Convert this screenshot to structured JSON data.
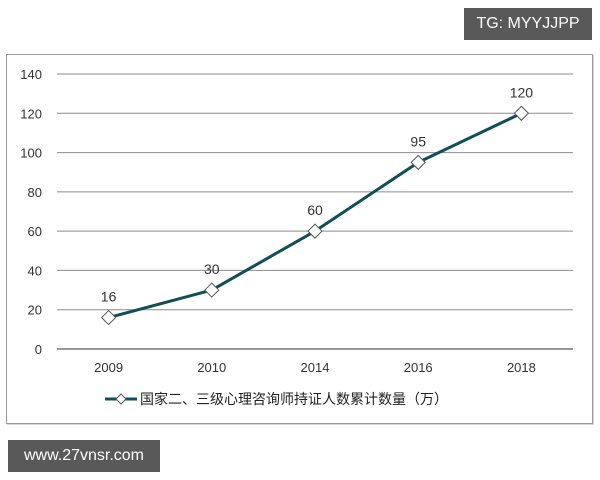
{
  "watermarks": {
    "top_right": "TG: MYYJJPP",
    "bottom_left": "www.27vnsr.com"
  },
  "colors": {
    "line": "#0f4f57",
    "grid": "#8c8c8c",
    "badge_bg": "#595959"
  },
  "chart_data": {
    "type": "line",
    "title": "",
    "xlabel": "",
    "ylabel": "",
    "categories": [
      "2009",
      "2010",
      "2014",
      "2016",
      "2018"
    ],
    "series": [
      {
        "name": "国家二、三级心理咨询师持证人数累计数量（万）",
        "values": [
          16,
          30,
          60,
          95,
          120
        ],
        "marker": "hollow-diamond",
        "data_labels": [
          "16",
          "30",
          "60",
          "95",
          "120"
        ]
      }
    ],
    "ylim": [
      0,
      140
    ],
    "yticks": [
      "0",
      "20",
      "40",
      "60",
      "80",
      "100",
      "120",
      "140"
    ],
    "grid": true,
    "legend_position": "bottom"
  }
}
